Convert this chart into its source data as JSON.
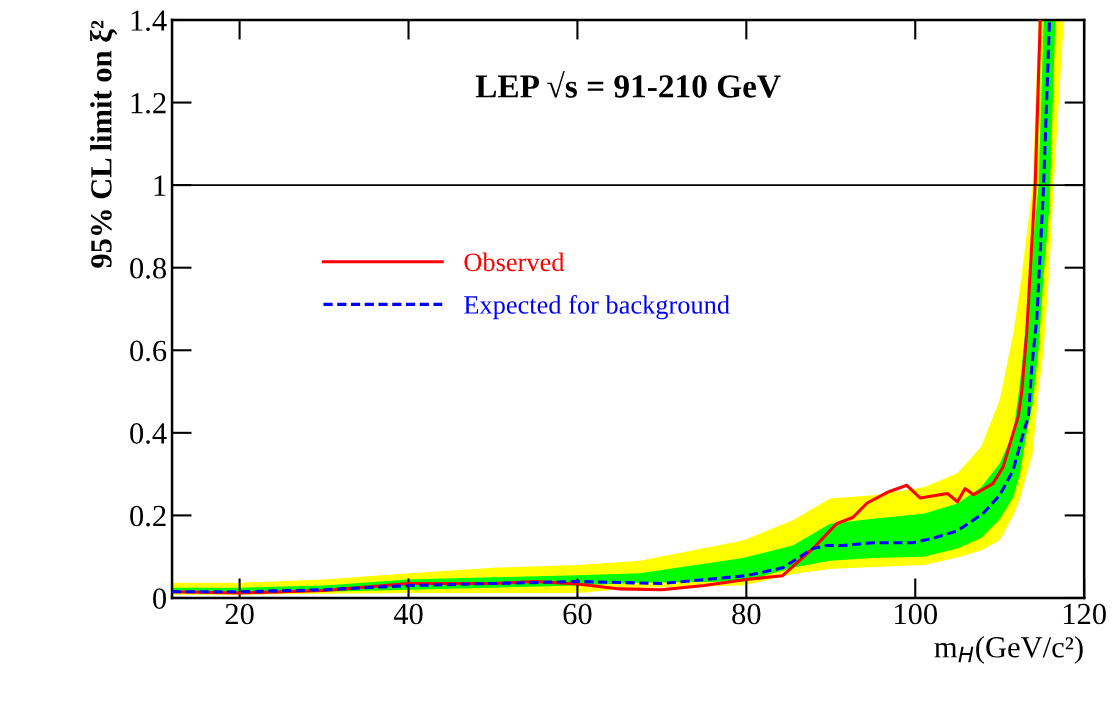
{
  "chart_data": {
    "type": "line",
    "xlabel": "m$_{H}$(GeV/c²)",
    "ylabel": "95% CL limit on ξ²",
    "annotations": [
      "LEP √s = 91-210 GeV"
    ],
    "xlim": [
      12,
      120
    ],
    "ylim": [
      0,
      1.4
    ],
    "xticks": [
      20,
      40,
      60,
      80,
      100,
      120
    ],
    "yticks": [
      0,
      0.2,
      0.4,
      0.6,
      0.8,
      1,
      1.2,
      1.4
    ],
    "ref_lines": [
      {
        "axis": "y",
        "value": 1,
        "color": "#000000"
      }
    ],
    "legend": "center left",
    "series": [
      {
        "type": "area",
        "color": "#ffff00",
        "x": [
          12,
          20,
          30,
          40,
          50,
          60,
          67.4,
          79.6,
          85.5,
          89.9,
          95,
          101,
          105,
          107.8,
          110,
          111.6,
          112.4,
          113.2,
          113.9,
          114.6,
          115.2,
          115.9,
          116.4,
          117.6
        ],
        "values": [
          null,
          null,
          null,
          null,
          null,
          null,
          null,
          null,
          null,
          null,
          null,
          null,
          null,
          null,
          null,
          null,
          null,
          null,
          null,
          null,
          null,
          null,
          null,
          null
        ],
        "lower": [
          0.008,
          0.008,
          0.01,
          0.012,
          0.012,
          0.012,
          0.025,
          0.03,
          0.058,
          0.07,
          0.075,
          0.08,
          0.098,
          0.115,
          0.14,
          0.2,
          0.24,
          0.3,
          0.35,
          0.5,
          0.6,
          0.8,
          1.0,
          1.4
        ],
        "upper": [
          0.037,
          0.037,
          0.045,
          0.06,
          0.073,
          0.08,
          0.09,
          0.139,
          0.188,
          0.241,
          0.249,
          0.268,
          0.302,
          0.366,
          0.48,
          0.64,
          0.75,
          0.88,
          1.0,
          1.4,
          1.4,
          1.4,
          1.4,
          1.4
        ]
      },
      {
        "type": "area",
        "color": "#00ff00",
        "x": [
          12,
          20,
          30,
          40,
          50,
          60,
          67.4,
          79.6,
          85.5,
          89.9,
          95,
          101,
          105,
          107.8,
          110,
          111.6,
          112.4,
          113.2,
          113.9,
          114.6,
          115.2,
          115.9,
          116.6
        ],
        "values": [
          null,
          null,
          null,
          null,
          null,
          null,
          null,
          null,
          null,
          null,
          null,
          null,
          null,
          null,
          null,
          null,
          null,
          null,
          null,
          null,
          null,
          null,
          null
        ],
        "lower": [
          0.012,
          0.012,
          0.015,
          0.02,
          0.025,
          0.03,
          0.037,
          0.04,
          0.073,
          0.09,
          0.097,
          0.1,
          0.12,
          0.145,
          0.19,
          0.244,
          0.3,
          0.4,
          0.47,
          0.6,
          0.78,
          0.95,
          1.4
        ],
        "upper": [
          0.025,
          0.025,
          0.03,
          0.045,
          0.05,
          0.055,
          0.06,
          0.097,
          0.127,
          0.18,
          0.192,
          0.204,
          0.229,
          0.268,
          0.326,
          0.4,
          0.52,
          0.68,
          0.85,
          1.0,
          1.4,
          1.4,
          1.4
        ]
      },
      {
        "name": "Observed",
        "color": "#ff0000",
        "line_style": "solid",
        "x": [
          12,
          20,
          30,
          40,
          50,
          55,
          60,
          65,
          70,
          75,
          80,
          84.3,
          87.9,
          90.7,
          92.6,
          94.3,
          96.7,
          99,
          100.6,
          103.8,
          105,
          105.9,
          106.9,
          109.2,
          110.4,
          111.6,
          112.2,
          112.6,
          113.2,
          114.2,
          114.8
        ],
        "values": [
          0.015,
          0.012,
          0.018,
          0.035,
          0.035,
          0.04,
          0.034,
          0.022,
          0.02,
          0.03,
          0.045,
          0.054,
          0.12,
          0.18,
          0.195,
          0.23,
          0.256,
          0.273,
          0.242,
          0.253,
          0.233,
          0.265,
          0.25,
          0.277,
          0.317,
          0.4,
          0.44,
          0.497,
          0.644,
          1.0,
          1.4
        ]
      },
      {
        "name": "Expected for background",
        "color": "#0000ff",
        "line_style": "dashed",
        "x": [
          12,
          20,
          30,
          40,
          50,
          60,
          70,
          80,
          84.3,
          87.9,
          89.5,
          91.5,
          95,
          99.7,
          102,
          105,
          108,
          110,
          111.6,
          112.8,
          113.4,
          113.8,
          114.4,
          115.2,
          115.9
        ],
        "values": [
          0.015,
          0.015,
          0.02,
          0.03,
          0.035,
          0.04,
          0.035,
          0.054,
          0.073,
          0.12,
          0.127,
          0.127,
          0.134,
          0.134,
          0.144,
          0.163,
          0.204,
          0.249,
          0.31,
          0.4,
          0.44,
          0.56,
          0.68,
          1.0,
          1.4
        ]
      }
    ]
  }
}
